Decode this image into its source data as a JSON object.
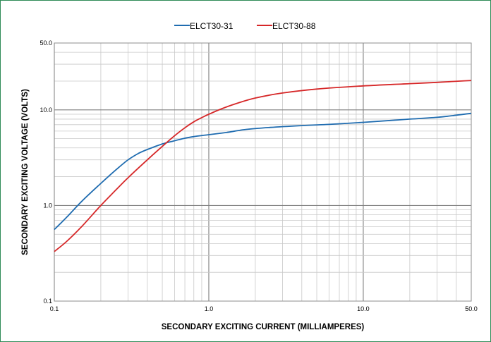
{
  "chart_data": {
    "type": "line",
    "title": "",
    "xlabel": "SECONDARY EXCITING CURRENT (MILLIAMPERES)",
    "ylabel": "SECONDARY EXCITING VOLTAGE (VOLTS)",
    "x_scale": "log",
    "y_scale": "log",
    "xlim": [
      0.1,
      50.0
    ],
    "ylim": [
      0.1,
      50.0
    ],
    "x_ticks": [
      {
        "value": 0.1,
        "label": "0.1"
      },
      {
        "value": 1.0,
        "label": "1.0"
      },
      {
        "value": 10.0,
        "label": "10.0"
      },
      {
        "value": 50.0,
        "label": "50.0"
      }
    ],
    "y_ticks": [
      {
        "value": 0.1,
        "label": "0.1"
      },
      {
        "value": 1.0,
        "label": "1.0"
      },
      {
        "value": 10.0,
        "label": "10.0"
      },
      {
        "value": 50.0,
        "label": "50.0"
      }
    ],
    "grid": true,
    "legend_position": "top-center",
    "series": [
      {
        "name": "ELCT30-31",
        "color": "#1f6cb0",
        "x": [
          0.1,
          0.12,
          0.15,
          0.2,
          0.25,
          0.3,
          0.35,
          0.4,
          0.5,
          0.6,
          0.7,
          0.8,
          1.0,
          1.3,
          1.7,
          2.5,
          4.0,
          6.0,
          10.0,
          15.0,
          20.0,
          30.0,
          40.0,
          50.0
        ],
        "y": [
          0.56,
          0.75,
          1.1,
          1.7,
          2.35,
          3.0,
          3.5,
          3.85,
          4.4,
          4.75,
          5.05,
          5.25,
          5.5,
          5.8,
          6.2,
          6.55,
          6.85,
          7.05,
          7.4,
          7.75,
          8.0,
          8.35,
          8.8,
          9.2
        ]
      },
      {
        "name": "ELCT30-88",
        "color": "#d62728",
        "x": [
          0.1,
          0.12,
          0.15,
          0.2,
          0.25,
          0.3,
          0.4,
          0.5,
          0.6,
          0.7,
          0.8,
          0.9,
          1.0,
          1.2,
          1.5,
          2.0,
          3.0,
          5.0,
          10.0,
          20.0,
          30.0,
          50.0
        ],
        "y": [
          0.33,
          0.42,
          0.6,
          1.0,
          1.45,
          1.95,
          3.0,
          4.15,
          5.35,
          6.5,
          7.5,
          8.3,
          9.0,
          10.2,
          11.6,
          13.3,
          15.0,
          16.5,
          17.8,
          18.8,
          19.4,
          20.3
        ]
      }
    ]
  }
}
